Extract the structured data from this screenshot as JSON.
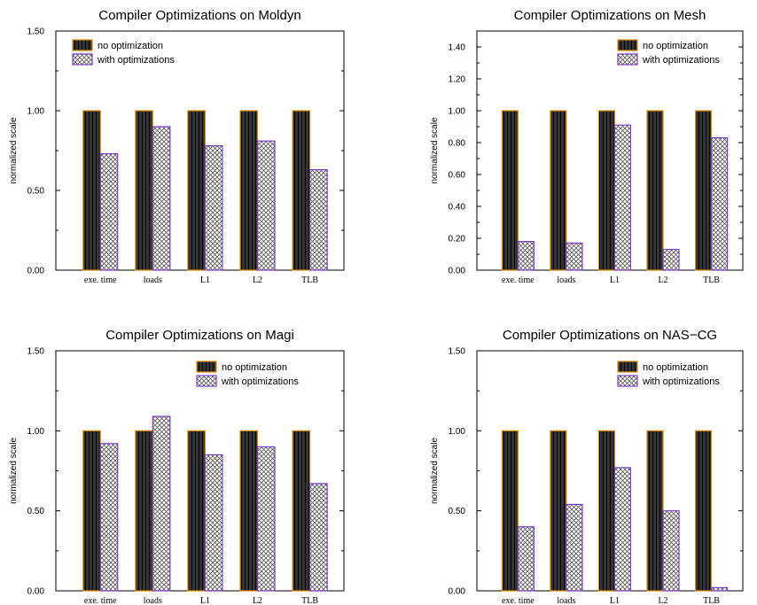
{
  "colors": {
    "no_opt_fill": "#333333",
    "no_opt_stroke": "#e08a00",
    "with_opt_fill": "#ffffff",
    "with_opt_stroke": "#7a3fc0",
    "axis": "#000000"
  },
  "chart_data": [
    {
      "type": "bar",
      "title": "Compiler Optimizations on Moldyn",
      "ylabel": "normalized scale",
      "xlabel": "",
      "categories": [
        "exe. time",
        "loads",
        "L1",
        "L2",
        "TLB"
      ],
      "ylim": [
        0,
        1.5
      ],
      "yticks": [
        0.0,
        0.5,
        1.0,
        1.5
      ],
      "ytick_labels": [
        "0.00",
        "0.50",
        "1.00",
        "1.50"
      ],
      "legend_position": "top-left",
      "series": [
        {
          "name": "no optimization",
          "values": [
            1.0,
            1.0,
            1.0,
            1.0,
            1.0
          ]
        },
        {
          "name": "with optimizations",
          "values": [
            0.73,
            0.9,
            0.78,
            0.81,
            0.63
          ]
        }
      ]
    },
    {
      "type": "bar",
      "title": "Compiler Optimizations on Mesh",
      "ylabel": "normalized scale",
      "xlabel": "",
      "categories": [
        "exe. time",
        "loads",
        "L1",
        "L2",
        "TLB"
      ],
      "ylim": [
        0,
        1.5
      ],
      "yticks": [
        0.0,
        0.2,
        0.4,
        0.6,
        0.8,
        1.0,
        1.2,
        1.4
      ],
      "ytick_labels": [
        "0.00",
        "0.20",
        "0.40",
        "0.60",
        "0.80",
        "1.00",
        "1.20",
        "1.40"
      ],
      "legend_position": "top-right",
      "series": [
        {
          "name": "no optimization",
          "values": [
            1.0,
            1.0,
            1.0,
            1.0,
            1.0
          ]
        },
        {
          "name": "with optimizations",
          "values": [
            0.18,
            0.17,
            0.91,
            0.13,
            0.83
          ]
        }
      ]
    },
    {
      "type": "bar",
      "title": "Compiler Optimizations on Magi",
      "ylabel": "normalized scale",
      "xlabel": "",
      "categories": [
        "exe. time",
        "loads",
        "L1",
        "L2",
        "TLB"
      ],
      "ylim": [
        0,
        1.5
      ],
      "yticks": [
        0.0,
        0.5,
        1.0,
        1.5
      ],
      "ytick_labels": [
        "0.00",
        "0.50",
        "1.00",
        "1.50"
      ],
      "legend_position": "top-right",
      "series": [
        {
          "name": "no optimization",
          "values": [
            1.0,
            1.0,
            1.0,
            1.0,
            1.0
          ]
        },
        {
          "name": "with optimizations",
          "values": [
            0.92,
            1.09,
            0.85,
            0.9,
            0.67
          ]
        }
      ]
    },
    {
      "type": "bar",
      "title": "Compiler Optimizations on NAS−CG",
      "ylabel": "normalized scale",
      "xlabel": "",
      "categories": [
        "exe. time",
        "loads",
        "L1",
        "L2",
        "TLB"
      ],
      "ylim": [
        0,
        1.5
      ],
      "yticks": [
        0.0,
        0.5,
        1.0,
        1.5
      ],
      "ytick_labels": [
        "0.00",
        "0.50",
        "1.00",
        "1.50"
      ],
      "legend_position": "top-right",
      "series": [
        {
          "name": "no optimization",
          "values": [
            1.0,
            1.0,
            1.0,
            1.0,
            1.0
          ]
        },
        {
          "name": "with optimizations",
          "values": [
            0.4,
            0.54,
            0.77,
            0.5,
            0.02
          ]
        }
      ]
    }
  ]
}
